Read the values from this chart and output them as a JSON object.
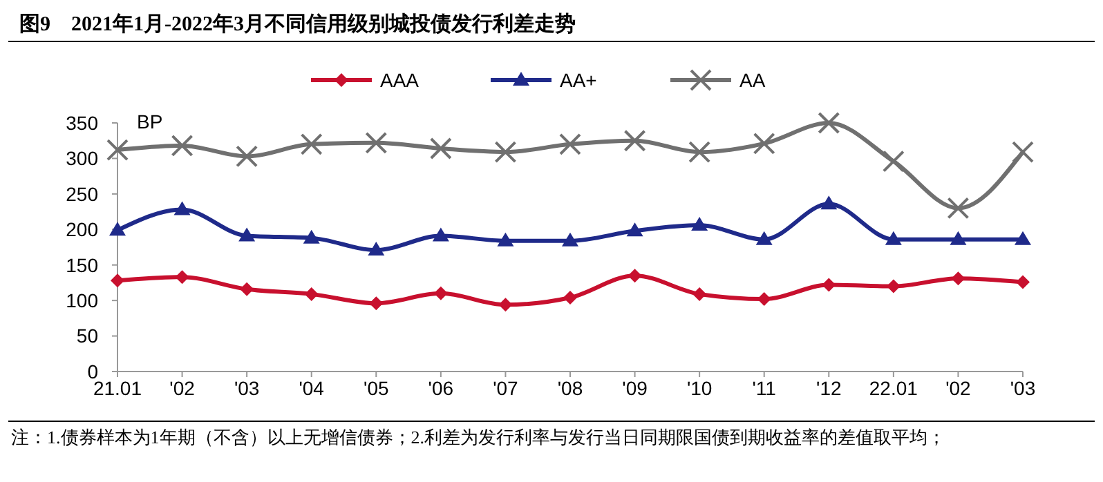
{
  "chart_data": {
    "type": "line",
    "title": "图9　2021年1月-2022年3月不同信用级别城投债发行利差走势",
    "ylabel": "BP",
    "categories": [
      "21.01",
      "'02",
      "'03",
      "'04",
      "'05",
      "'06",
      "'07",
      "'08",
      "'09",
      "'10",
      "'11",
      "'12",
      "22.01",
      "'02",
      "'03"
    ],
    "series": [
      {
        "name": "AAA",
        "color": "#c8102e",
        "marker": "diamond",
        "values": [
          128,
          133,
          116,
          109,
          96,
          110,
          94,
          104,
          135,
          109,
          102,
          122,
          120,
          131,
          126
        ]
      },
      {
        "name": "AA+",
        "color": "#1f2a8a",
        "marker": "triangle",
        "values": [
          199,
          228,
          191,
          188,
          171,
          191,
          184,
          184,
          198,
          206,
          186,
          236,
          186,
          186,
          186
        ]
      },
      {
        "name": "AA",
        "color": "#707070",
        "marker": "cross",
        "values": [
          312,
          318,
          303,
          320,
          322,
          314,
          309,
          320,
          325,
          309,
          321,
          350,
          296,
          230,
          309
        ]
      }
    ],
    "ylim": [
      0,
      350
    ],
    "yticks": [
      0,
      50,
      100,
      150,
      200,
      250,
      300,
      350
    ],
    "grid": false,
    "legend": "top",
    "line_style": "solid",
    "annotations": [
      "注：1.债券样本为1年期（不含）以上无增信债券；2.利差为发行利率与发行当日同期限国债到期收益率的差值取平均；"
    ]
  }
}
